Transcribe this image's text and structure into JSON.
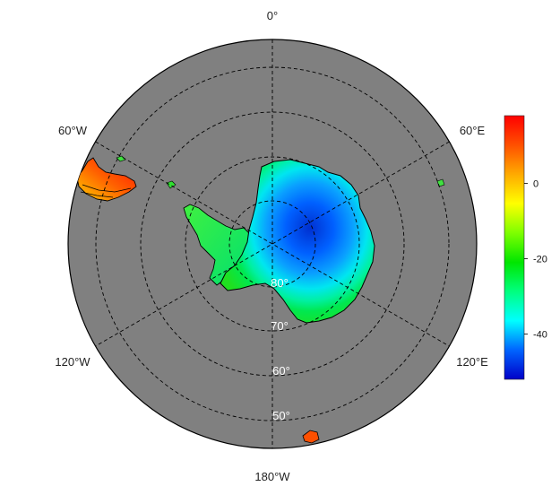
{
  "map": {
    "projection": "south-polar-stereographic",
    "meridian_labels": [
      {
        "text": "0°",
        "lon": 0
      },
      {
        "text": "60°E",
        "lon": 60
      },
      {
        "text": "120°E",
        "lon": 120
      },
      {
        "text": "180°W",
        "lon": 180
      },
      {
        "text": "120°W",
        "lon": -120
      },
      {
        "text": "60°W",
        "lon": -60
      }
    ],
    "parallel_labels": [
      {
        "text": "80°",
        "lat": -80
      },
      {
        "text": "70°",
        "lat": -70
      },
      {
        "text": "60°",
        "lat": -60
      },
      {
        "text": "50°",
        "lat": -50
      }
    ],
    "ocean_color": "#808080",
    "gridline_style": "dashed"
  },
  "colorbar": {
    "ticks": [
      {
        "text": "0",
        "value": 0
      },
      {
        "text": "-20",
        "value": -20
      },
      {
        "text": "-40",
        "value": -40
      }
    ],
    "range": [
      -52,
      18
    ],
    "colors": [
      "#0000c8",
      "#0064ff",
      "#00ffff",
      "#00ff7f",
      "#00e600",
      "#7fff00",
      "#ffff00",
      "#ffaa00",
      "#ff5000",
      "#ff0000"
    ]
  }
}
